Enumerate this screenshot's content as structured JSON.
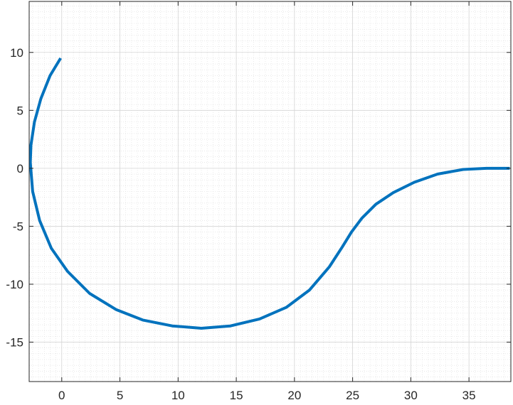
{
  "chart_data": {
    "type": "line",
    "title": "",
    "xlabel": "",
    "ylabel": "",
    "xlim": [
      -2.8,
      38.6
    ],
    "ylim": [
      -18.4,
      14.4
    ],
    "x_ticks": [
      0,
      5,
      10,
      15,
      20,
      25,
      30,
      35
    ],
    "y_ticks": [
      10,
      5,
      0,
      -5,
      -10,
      -15
    ],
    "x_tick_labels": [
      "0",
      "5",
      "10",
      "15",
      "20",
      "25",
      "30",
      "35"
    ],
    "y_tick_labels": [
      "10",
      "5",
      "0",
      "-5",
      "-10",
      "-15"
    ],
    "grid": true,
    "minor_grid": true,
    "legend": "none",
    "series": [
      {
        "color": "#0072BD",
        "x": [
          -0.1,
          -1.0,
          -1.8,
          -2.35,
          -2.65,
          -2.7,
          -2.5,
          -1.9,
          -0.9,
          0.5,
          2.4,
          4.7,
          7.0,
          9.5,
          12.0,
          14.5,
          17.0,
          19.3,
          21.3,
          23.0,
          24.1,
          24.9,
          25.8,
          27.0,
          28.5,
          30.3,
          32.3,
          34.5,
          36.5,
          38.5
        ],
        "y": [
          9.5,
          8.0,
          6.0,
          4.0,
          2.0,
          0.5,
          -2.0,
          -4.5,
          -6.9,
          -8.9,
          -10.8,
          -12.2,
          -13.1,
          -13.6,
          -13.8,
          -13.6,
          -13.0,
          -12.0,
          -10.5,
          -8.5,
          -6.8,
          -5.5,
          -4.3,
          -3.1,
          -2.1,
          -1.2,
          -0.5,
          -0.1,
          0.0,
          0.0
        ]
      }
    ]
  }
}
